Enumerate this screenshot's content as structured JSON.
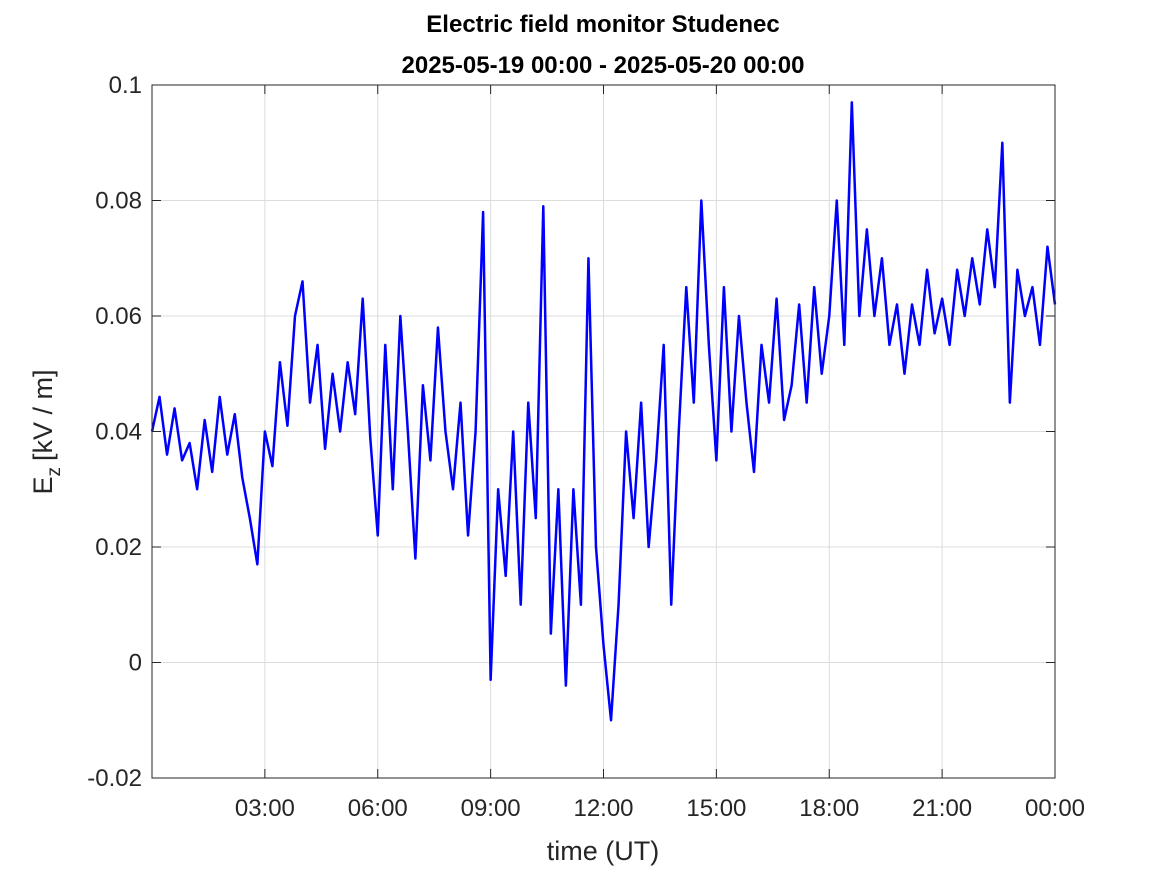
{
  "chart_data": {
    "type": "line",
    "title": "Electric field monitor Studenec",
    "subtitle": "2025-05-19 00:00 - 2025-05-20 00:00",
    "xlabel": "time (UT)",
    "ylabel": {
      "main": "E",
      "sub": "z",
      "unit": "[kV / m]"
    },
    "x": [
      0,
      0.2,
      0.4,
      0.6,
      0.8,
      1,
      1.2,
      1.4,
      1.6,
      1.8,
      2,
      2.2,
      2.4,
      2.6,
      2.8,
      3,
      3.2,
      3.4,
      3.6,
      3.8,
      4,
      4.2,
      4.4,
      4.6,
      4.8,
      5,
      5.2,
      5.4,
      5.6,
      5.8,
      6,
      6.2,
      6.4,
      6.6,
      6.8,
      7,
      7.2,
      7.4,
      7.6,
      7.8,
      8,
      8.2,
      8.4,
      8.6,
      8.8,
      9,
      9.2,
      9.4,
      9.6,
      9.8,
      10,
      10.2,
      10.4,
      10.6,
      10.8,
      11,
      11.2,
      11.4,
      11.6,
      11.8,
      12,
      12.2,
      12.4,
      12.6,
      12.8,
      13,
      13.2,
      13.4,
      13.6,
      13.8,
      14,
      14.2,
      14.4,
      14.6,
      14.8,
      15,
      15.2,
      15.4,
      15.6,
      15.8,
      16,
      16.2,
      16.4,
      16.6,
      16.8,
      17,
      17.2,
      17.4,
      17.6,
      17.8,
      18,
      18.2,
      18.4,
      18.6,
      18.8,
      19,
      19.2,
      19.4,
      19.6,
      19.8,
      20,
      20.2,
      20.4,
      20.6,
      20.8,
      21,
      21.2,
      21.4,
      21.6,
      21.8,
      22,
      22.2,
      22.4,
      22.6,
      22.8,
      23,
      23.2,
      23.4,
      23.6,
      23.8,
      24
    ],
    "series": [
      {
        "name": "Ez",
        "color": "#0000ff",
        "values": [
          0.04,
          0.046,
          0.036,
          0.044,
          0.035,
          0.038,
          0.03,
          0.042,
          0.033,
          0.046,
          0.036,
          0.043,
          0.032,
          0.025,
          0.017,
          0.04,
          0.034,
          0.052,
          0.041,
          0.06,
          0.066,
          0.045,
          0.055,
          0.037,
          0.05,
          0.04,
          0.052,
          0.043,
          0.063,
          0.039,
          0.022,
          0.055,
          0.03,
          0.06,
          0.04,
          0.018,
          0.048,
          0.035,
          0.058,
          0.04,
          0.03,
          0.045,
          0.022,
          0.04,
          0.078,
          -0.003,
          0.03,
          0.015,
          0.04,
          0.01,
          0.045,
          0.025,
          0.079,
          0.005,
          0.03,
          -0.004,
          0.03,
          0.01,
          0.07,
          0.02,
          0.003,
          -0.01,
          0.01,
          0.04,
          0.025,
          0.045,
          0.02,
          0.035,
          0.055,
          0.01,
          0.04,
          0.065,
          0.045,
          0.08,
          0.055,
          0.035,
          0.065,
          0.04,
          0.06,
          0.045,
          0.033,
          0.055,
          0.045,
          0.063,
          0.042,
          0.048,
          0.062,
          0.045,
          0.065,
          0.05,
          0.06,
          0.08,
          0.055,
          0.097,
          0.06,
          0.075,
          0.06,
          0.07,
          0.055,
          0.062,
          0.05,
          0.062,
          0.055,
          0.068,
          0.057,
          0.063,
          0.055,
          0.068,
          0.06,
          0.07,
          0.062,
          0.075,
          0.065,
          0.09,
          0.045,
          0.068,
          0.06,
          0.065,
          0.055,
          0.072,
          0.062
        ]
      }
    ],
    "xlim": [
      0,
      24
    ],
    "xticks": [
      {
        "value": 3,
        "label": "03:00"
      },
      {
        "value": 6,
        "label": "06:00"
      },
      {
        "value": 9,
        "label": "09:00"
      },
      {
        "value": 12,
        "label": "12:00"
      },
      {
        "value": 15,
        "label": "15:00"
      },
      {
        "value": 18,
        "label": "18:00"
      },
      {
        "value": 21,
        "label": "21:00"
      },
      {
        "value": 24,
        "label": "00:00"
      }
    ],
    "ylim": [
      -0.02,
      0.1
    ],
    "yticks": [
      -0.02,
      0,
      0.02,
      0.04,
      0.06,
      0.08,
      0.1
    ],
    "grid": true
  }
}
